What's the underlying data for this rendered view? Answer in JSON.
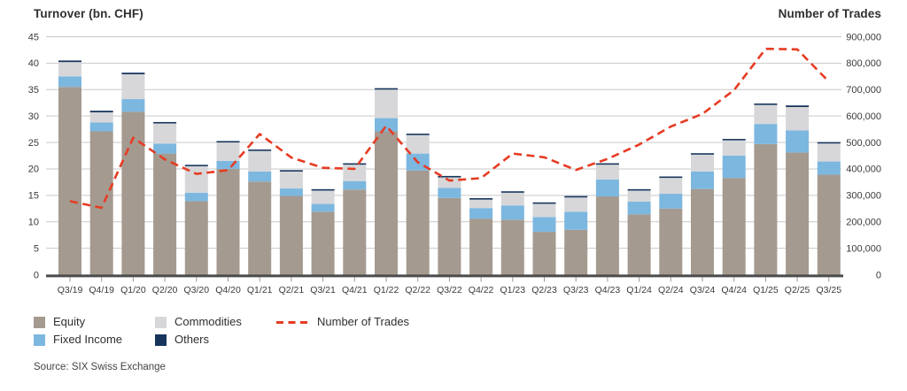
{
  "header": {
    "left_title": "Turnover (bn. CHF)",
    "right_title": "Number of Trades"
  },
  "legend": {
    "items": [
      {
        "label": "Equity",
        "color": "#a49a8f"
      },
      {
        "label": "Fixed Income",
        "color": "#7cb7e0"
      },
      {
        "label": "Commodities",
        "color": "#d7d7d9"
      },
      {
        "label": "Others",
        "color": "#17355c"
      }
    ],
    "line_item": {
      "label": "Number of Trades",
      "color": "#e63c23"
    }
  },
  "source": "Source: SIX Swiss Exchange",
  "colors": {
    "gridline": "#c9c9c9",
    "baseline": "#4b4b4b",
    "tick": "#999999",
    "tick_text": "#3a3a3a",
    "trades_line": "#e63c23"
  },
  "chart_data": {
    "type": "bar",
    "stacked": true,
    "title": "Turnover (bn. CHF) and Number of Trades by quarter",
    "categories": [
      "Q3/19",
      "Q4/19",
      "Q1/20",
      "Q2/20",
      "Q3/20",
      "Q4/20",
      "Q1/21",
      "Q2/21",
      "Q3/21",
      "Q4/21",
      "Q1/22",
      "Q2/22",
      "Q3/22",
      "Q4/22",
      "Q1/23",
      "Q2/23",
      "Q3/23",
      "Q4/23",
      "Q1/24",
      "Q2/24",
      "Q3/24",
      "Q4/24",
      "Q1/25",
      "Q2/25",
      "Q3/25"
    ],
    "series": [
      {
        "name": "Equity",
        "color": "#a49a8f",
        "values": [
          35.5,
          27.1,
          30.8,
          22.9,
          13.9,
          20.0,
          17.6,
          14.9,
          11.9,
          16.1,
          27.1,
          19.7,
          14.5,
          10.6,
          10.4,
          8.1,
          8.5,
          14.8,
          11.4,
          12.5,
          16.2,
          18.3,
          24.7,
          23.1,
          18.9
        ]
      },
      {
        "name": "Fixed Income",
        "color": "#7cb7e0",
        "values": [
          2.0,
          1.7,
          2.4,
          1.9,
          1.6,
          1.5,
          1.9,
          1.4,
          1.5,
          1.6,
          2.5,
          3.2,
          1.9,
          2.0,
          2.7,
          2.8,
          3.4,
          3.2,
          2.4,
          2.8,
          3.3,
          4.2,
          3.8,
          4.2,
          2.5
        ]
      },
      {
        "name": "Commodities",
        "color": "#d7d7d9",
        "values": [
          2.7,
          1.9,
          4.7,
          3.8,
          5.0,
          3.5,
          3.9,
          3.2,
          2.5,
          3.1,
          5.4,
          3.5,
          2.0,
          1.6,
          2.4,
          2.5,
          2.7,
          2.8,
          2.1,
          3.0,
          3.2,
          2.9,
          3.6,
          4.4,
          3.4
        ]
      },
      {
        "name": "Others",
        "color": "#17355c",
        "values": [
          0.3,
          0.3,
          0.3,
          0.2,
          0.2,
          0.2,
          0.2,
          0.2,
          0.1,
          0.1,
          0.1,
          0.1,
          0.1,
          0.1,
          0.1,
          0.1,
          0.1,
          0.1,
          0.1,
          0.1,
          0.1,
          0.1,
          0.1,
          0.3,
          0.2
        ]
      }
    ],
    "line_series": {
      "name": "Number of Trades",
      "color": "#e63c23",
      "axis": "right",
      "values": [
        278000,
        253000,
        518000,
        436000,
        381000,
        395000,
        532000,
        443000,
        404000,
        400000,
        563000,
        425000,
        356000,
        365000,
        458000,
        444000,
        396000,
        438000,
        492000,
        560000,
        608000,
        698000,
        854000,
        852000,
        730000
      ]
    },
    "left_axis": {
      "title": "Turnover (bn. CHF)",
      "min": 0,
      "max": 45,
      "step": 5,
      "ticks": [
        0,
        5,
        10,
        15,
        20,
        25,
        30,
        35,
        40,
        45
      ]
    },
    "right_axis": {
      "title": "Number of Trades",
      "min": 0,
      "max": 900000,
      "step": 100000,
      "ticks": [
        0,
        100000,
        200000,
        300000,
        400000,
        500000,
        600000,
        700000,
        800000,
        900000
      ]
    },
    "grid": "horizontal",
    "legend_position": "bottom-left"
  }
}
